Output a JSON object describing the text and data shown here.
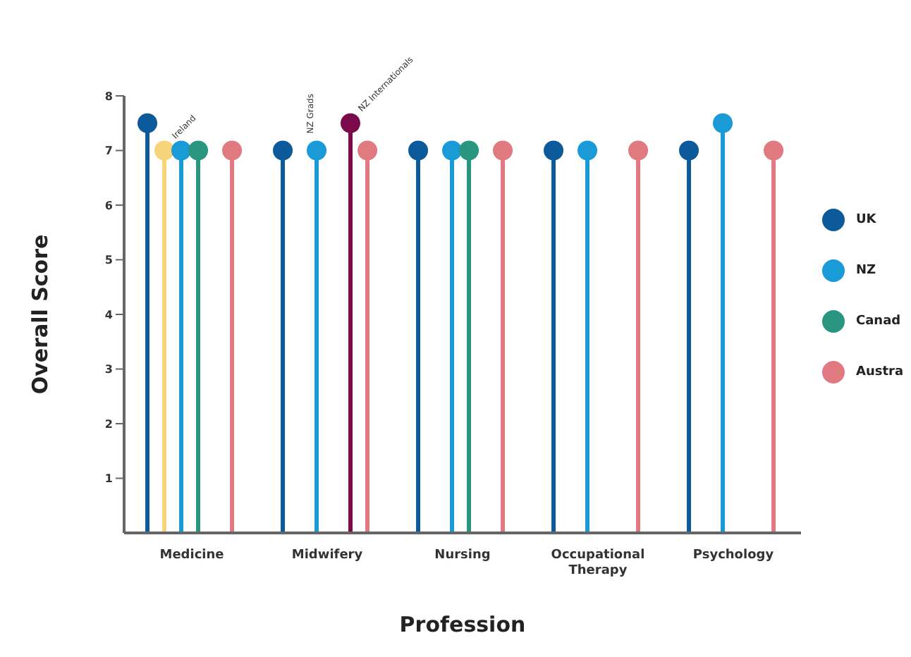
{
  "chart_data": {
    "type": "lollipop",
    "xlabel": "Profession",
    "ylabel": "Overall Score",
    "categories": [
      "Medicine",
      "Midwifery",
      "Nursing",
      "Occupational Therapy",
      "Psychology"
    ],
    "series": [
      {
        "name": "UK",
        "color": "#0d5a9a",
        "values": [
          7.5,
          7,
          7,
          7,
          7
        ]
      },
      {
        "name": "Ireland",
        "color": "#f6d57a",
        "values": [
          7,
          null,
          null,
          null,
          null
        ]
      },
      {
        "name": "NZ",
        "color": "#1a9ad6",
        "values": [
          7,
          7,
          7,
          7,
          7.5
        ]
      },
      {
        "name": "Canad",
        "color": "#2a9680",
        "values": [
          7,
          null,
          7,
          null,
          null
        ]
      },
      {
        "name": "NZ Internationals",
        "color": "#7a0a4a",
        "values": [
          null,
          7.5,
          null,
          null,
          null
        ]
      },
      {
        "name": "Austra",
        "color": "#e07a80",
        "values": [
          7,
          7,
          7,
          7,
          7
        ]
      }
    ],
    "annotations": [
      {
        "text": "NZ Grads",
        "x": "Midwifery",
        "y": 7
      }
    ],
    "ylim": [
      0,
      8
    ],
    "yticks": [
      1,
      2,
      3,
      4,
      5,
      6,
      7,
      8
    ],
    "grid": false,
    "legend": "right",
    "marker": "circle"
  }
}
